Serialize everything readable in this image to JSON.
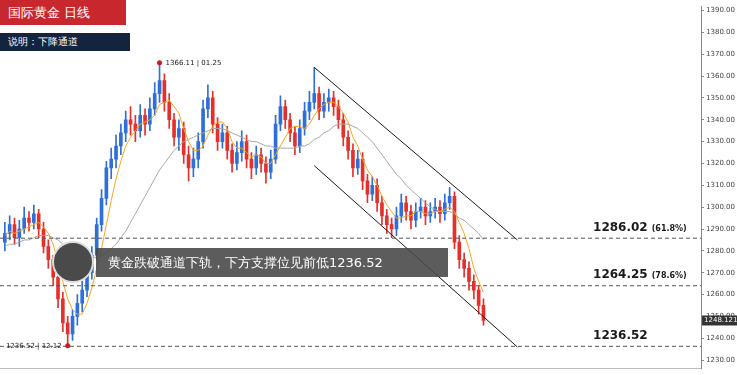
{
  "chart_data": {
    "type": "candlestick",
    "title": "国际黄金 日线",
    "subtitle": "说明：下降通道",
    "annotation": "黄金跌破通道下轨，下方支撑位见前低1236.52",
    "categories": [
      null,
      null,
      null,
      null,
      null,
      null,
      null,
      null,
      null,
      null,
      null,
      null,
      null,
      null,
      null,
      null,
      null,
      null,
      null,
      null,
      null,
      null,
      null,
      null,
      null,
      null,
      null,
      null,
      null,
      null,
      null,
      null,
      null,
      null,
      null,
      null,
      null,
      null,
      null,
      null,
      null,
      null,
      null,
      null,
      null,
      null,
      null,
      null,
      null,
      null,
      null,
      null,
      null,
      null,
      null,
      null,
      null,
      null,
      null,
      null,
      null,
      null,
      null,
      null,
      null,
      null,
      null,
      null,
      null,
      null,
      null,
      null,
      null,
      null,
      null,
      null,
      null,
      null,
      null,
      null,
      null,
      null,
      null,
      null,
      null,
      null,
      null,
      null,
      null,
      null,
      null,
      null,
      null,
      null,
      null,
      null,
      null,
      null,
      null,
      null
    ],
    "open": [
      1284,
      1288,
      1292,
      1286,
      1290,
      1295,
      1293,
      1297,
      1290,
      1282,
      1276,
      1268,
      1258,
      1247,
      1242,
      1250,
      1256,
      1262,
      1270,
      1278,
      1292,
      1304,
      1318,
      1322,
      1328,
      1334,
      1340,
      1338,
      1335,
      1342,
      1338,
      1345,
      1352,
      1358,
      1348,
      1340,
      1332,
      1336,
      1324,
      1318,
      1322,
      1330,
      1345,
      1350,
      1338,
      1330,
      1334,
      1326,
      1320,
      1325,
      1330,
      1322,
      1318,
      1324,
      1320,
      1316,
      1322,
      1338,
      1346,
      1340,
      1334,
      1328,
      1336,
      1344,
      1348,
      1352,
      1344,
      1348,
      1350,
      1346,
      1340,
      1332,
      1326,
      1318,
      1322,
      1312,
      1306,
      1310,
      1302,
      1296,
      1292,
      1290,
      1296,
      1302,
      1298,
      1294,
      1298,
      1300,
      1296,
      1298,
      1300,
      1297,
      1302,
      1305,
      1284,
      1276,
      1272,
      1266,
      1262,
      1255
    ],
    "high": [
      1293,
      1296,
      1295,
      1294,
      1300,
      1298,
      1301,
      1299,
      1293,
      1285,
      1278,
      1271,
      1261,
      1250,
      1253,
      1260,
      1266,
      1273,
      1282,
      1295,
      1308,
      1321,
      1327,
      1333,
      1338,
      1344,
      1346,
      1342,
      1347,
      1345,
      1350,
      1357,
      1366.11,
      1361,
      1352,
      1343,
      1340,
      1339,
      1328,
      1327,
      1334,
      1349,
      1356,
      1353,
      1341,
      1338,
      1337,
      1329,
      1330,
      1335,
      1333,
      1325,
      1328,
      1327,
      1323,
      1326,
      1342,
      1351,
      1349,
      1343,
      1337,
      1340,
      1348,
      1353,
      1364,
      1355,
      1352,
      1354,
      1353,
      1349,
      1343,
      1335,
      1329,
      1326,
      1325,
      1315,
      1314,
      1313,
      1305,
      1299,
      1295,
      1300,
      1306,
      1305,
      1301,
      1302,
      1304,
      1303,
      1302,
      1304,
      1303,
      1306,
      1309,
      1307,
      1287,
      1279,
      1275,
      1269,
      1264,
      1258
    ],
    "low": [
      1280,
      1285,
      1283,
      1282,
      1288,
      1289,
      1290,
      1286,
      1279,
      1272,
      1264,
      1254,
      1243,
      1236.52,
      1239,
      1246,
      1252,
      1259,
      1267,
      1276,
      1289,
      1301,
      1313,
      1318,
      1324,
      1330,
      1333,
      1330,
      1332,
      1333,
      1335,
      1342,
      1348,
      1344,
      1336,
      1328,
      1326,
      1320,
      1312,
      1314,
      1318,
      1327,
      1341,
      1334,
      1326,
      1327,
      1322,
      1316,
      1317,
      1321,
      1318,
      1313,
      1315,
      1316,
      1311,
      1313,
      1320,
      1335,
      1336,
      1330,
      1324,
      1325,
      1333,
      1340,
      1345,
      1340,
      1341,
      1344,
      1342,
      1336,
      1328,
      1322,
      1314,
      1315,
      1308,
      1302,
      1303,
      1298,
      1292,
      1288,
      1286,
      1287,
      1293,
      1294,
      1290,
      1291,
      1295,
      1292,
      1293,
      1295,
      1293,
      1294,
      1299,
      1281,
      1272,
      1268,
      1262,
      1258,
      1251,
      1246
    ],
    "close": [
      1288,
      1292,
      1286,
      1290,
      1295,
      1293,
      1297,
      1290,
      1282,
      1276,
      1268,
      1258,
      1247,
      1242,
      1250,
      1256,
      1262,
      1270,
      1278,
      1292,
      1304,
      1318,
      1322,
      1328,
      1334,
      1340,
      1338,
      1335,
      1342,
      1338,
      1345,
      1352,
      1358,
      1348,
      1340,
      1332,
      1336,
      1324,
      1318,
      1322,
      1330,
      1345,
      1350,
      1338,
      1330,
      1334,
      1326,
      1320,
      1325,
      1330,
      1322,
      1318,
      1324,
      1320,
      1316,
      1322,
      1338,
      1346,
      1340,
      1334,
      1328,
      1336,
      1344,
      1348,
      1352,
      1344,
      1348,
      1350,
      1346,
      1340,
      1332,
      1326,
      1318,
      1322,
      1312,
      1306,
      1310,
      1302,
      1296,
      1292,
      1290,
      1296,
      1302,
      1298,
      1294,
      1298,
      1300,
      1296,
      1298,
      1300,
      1297,
      1302,
      1305,
      1284,
      1276,
      1272,
      1266,
      1262,
      1255,
      1248.121
    ],
    "colors": [
      "#2f6fd8",
      "#2f6fd8",
      "#e5302b",
      "#2f6fd8",
      "#2f6fd8",
      "#e5302b",
      "#2f6fd8",
      "#e5302b",
      "#e5302b",
      "#e5302b",
      "#e5302b",
      "#e5302b",
      "#e5302b",
      "#e5302b",
      "#2f6fd8",
      "#2f6fd8",
      "#2f6fd8",
      "#2f6fd8",
      "#2f6fd8",
      "#2f6fd8",
      "#2f6fd8",
      "#2f6fd8",
      "#2f6fd8",
      "#2f6fd8",
      "#2f6fd8",
      "#2f6fd8",
      "#e5302b",
      "#e5302b",
      "#2f6fd8",
      "#e5302b",
      "#2f6fd8",
      "#2f6fd8",
      "#2f6fd8",
      "#e5302b",
      "#e5302b",
      "#e5302b",
      "#2f6fd8",
      "#e5302b",
      "#e5302b",
      "#2f6fd8",
      "#2f6fd8",
      "#2f6fd8",
      "#2f6fd8",
      "#e5302b",
      "#e5302b",
      "#2f6fd8",
      "#e5302b",
      "#e5302b",
      "#2f6fd8",
      "#2f6fd8",
      "#e5302b",
      "#e5302b",
      "#2f6fd8",
      "#e5302b",
      "#e5302b",
      "#2f6fd8",
      "#2f6fd8",
      "#2f6fd8",
      "#e5302b",
      "#e5302b",
      "#e5302b",
      "#2f6fd8",
      "#2f6fd8",
      "#2f6fd8",
      "#2f6fd8",
      "#e5302b",
      "#2f6fd8",
      "#2f6fd8",
      "#e5302b",
      "#e5302b",
      "#e5302b",
      "#e5302b",
      "#e5302b",
      "#2f6fd8",
      "#e5302b",
      "#e5302b",
      "#2f6fd8",
      "#e5302b",
      "#e5302b",
      "#e5302b",
      "#e5302b",
      "#2f6fd8",
      "#2f6fd8",
      "#e5302b",
      "#e5302b",
      "#2f6fd8",
      "#2f6fd8",
      "#e5302b",
      "#2f6fd8",
      "#2f6fd8",
      "#e5302b",
      "#2f6fd8",
      "#2f6fd8",
      "#e5302b",
      "#e5302b",
      "#e5302b",
      "#e5302b",
      "#e5302b",
      "#e5302b",
      "#e5302b"
    ],
    "series": [
      {
        "type": "line",
        "color": "#f5a623",
        "line_style": "solid",
        "values": [
          1287,
          1289,
          1288,
          1289,
          1290,
          1291,
          1292,
          1293,
          1291,
          1288,
          1283,
          1275,
          1266,
          1258,
          1253,
          1251,
          1251,
          1256,
          1263,
          1272,
          1281,
          1292,
          1303,
          1313,
          1321,
          1328,
          1332,
          1335,
          1338,
          1339,
          1340,
          1342,
          1347,
          1348,
          1349,
          1346,
          1343,
          1336,
          1330,
          1326,
          1326,
          1328,
          1333,
          1337,
          1339,
          1339,
          1336,
          1330,
          1327,
          1327,
          1325,
          1323,
          1324,
          1323,
          1320,
          1320,
          1324,
          1328,
          1332,
          1336,
          1337,
          1337,
          1336,
          1338,
          1342,
          1345,
          1347,
          1348,
          1348,
          1346,
          1343,
          1339,
          1332,
          1328,
          1322,
          1317,
          1314,
          1310,
          1305,
          1301,
          1298,
          1295,
          1295,
          1296,
          1296,
          1298,
          1298,
          1297,
          1297,
          1298,
          1298,
          1299,
          1300,
          1298,
          1293,
          1288,
          1281,
          1272,
          1266,
          1261
        ]
      },
      {
        "type": "line",
        "color": "#a8a8a8",
        "line_style": "solid",
        "values": [
          1282,
          1283,
          1283,
          1284,
          1285,
          1285,
          1286,
          1287,
          1287,
          1287,
          1286,
          1285,
          1283,
          1281,
          1280,
          1279,
          1278,
          1277,
          1277,
          1277,
          1278,
          1279,
          1281,
          1283,
          1286,
          1289,
          1293,
          1297,
          1301,
          1305,
          1309,
          1313,
          1317,
          1320,
          1323,
          1326,
          1328,
          1330,
          1331,
          1332,
          1333,
          1334,
          1335,
          1336,
          1336,
          1336,
          1335,
          1334,
          1333,
          1332,
          1331,
          1330,
          1330,
          1329,
          1328,
          1328,
          1327,
          1327,
          1327,
          1327,
          1327,
          1328,
          1328,
          1329,
          1331,
          1332,
          1334,
          1335,
          1337,
          1338,
          1338,
          1338,
          1337,
          1336,
          1334,
          1332,
          1330,
          1327,
          1324,
          1321,
          1318,
          1315,
          1313,
          1310,
          1308,
          1306,
          1304,
          1302,
          1300,
          1299,
          1298,
          1298,
          1298,
          1297,
          1295,
          1294,
          1292,
          1290,
          1288,
          1285
        ]
      }
    ],
    "channel": {
      "color": "#1a1a1a",
      "line_style": "solid",
      "x": [
        64,
        106
      ],
      "upper": [
        1364,
        1285
      ],
      "lower": [
        1319,
        1236
      ]
    },
    "levels": [
      {
        "value": 1286.02,
        "label": "1286.02",
        "fib": "(61.8%)"
      },
      {
        "value": 1264.25,
        "label": "1264.25",
        "fib": "(78.6%)"
      },
      {
        "value": 1236.52,
        "label": "1236.52"
      }
    ],
    "level_line_style": "dashed",
    "markers": [
      {
        "x": 32,
        "y": 1366.11,
        "label": "1366.11 | 01.25",
        "color": "#d0191e"
      },
      {
        "x": 13,
        "y": 1236.52,
        "label": "1236.52 | 12.12",
        "color": "#d0191e"
      }
    ],
    "current_price": 1248.121,
    "xlim": [
      -1,
      144
    ],
    "ylim": [
      1226,
      1392
    ],
    "yticks": [
      {
        "value": 1230,
        "label": "1230.00"
      },
      {
        "value": 1240,
        "label": "1240.00"
      },
      {
        "value": 1250,
        "label": "1250.00"
      },
      {
        "value": 1260,
        "label": "1260.00"
      },
      {
        "value": 1270,
        "label": "1270.00"
      },
      {
        "value": 1280,
        "label": "1280.00"
      },
      {
        "value": 1290,
        "label": "1290.00"
      },
      {
        "value": 1300,
        "label": "1300.00"
      },
      {
        "value": 1310,
        "label": "1310.00"
      },
      {
        "value": 1320,
        "label": "1320.00"
      },
      {
        "value": 1330,
        "label": "1330.00"
      },
      {
        "value": 1340,
        "label": "1340.00"
      },
      {
        "value": 1350,
        "label": "1350.00"
      },
      {
        "value": 1360,
        "label": "1360.00"
      },
      {
        "value": 1370,
        "label": "1370.00"
      },
      {
        "value": 1380,
        "label": "1380.00"
      },
      {
        "value": 1390,
        "label": "1390.00"
      }
    ],
    "tick_labels": "y",
    "grid": false,
    "legend": false
  }
}
